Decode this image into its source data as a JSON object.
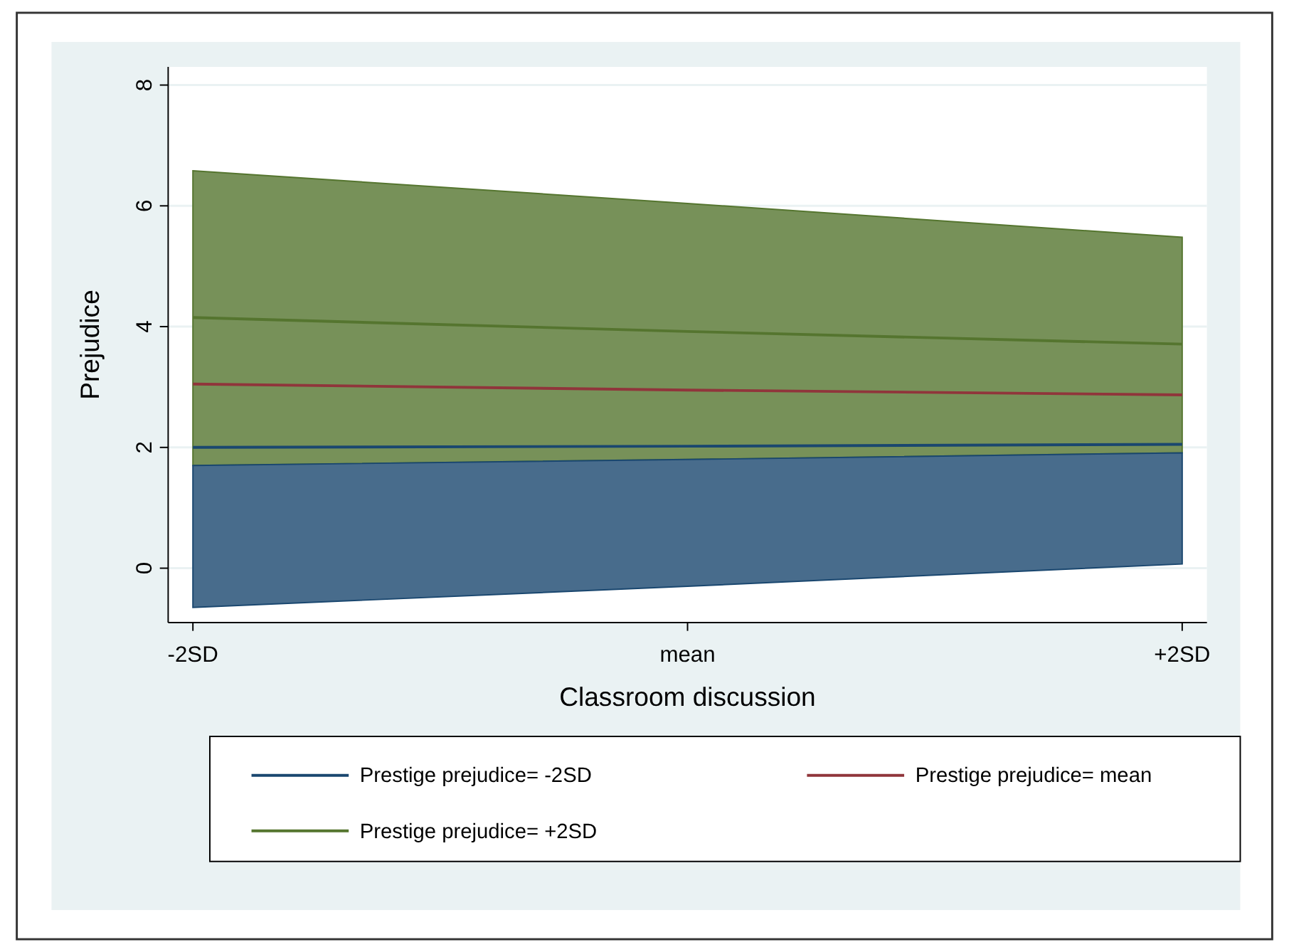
{
  "chart_data": {
    "type": "line",
    "xlabel": "Classroom discussion",
    "ylabel": "Prejudice",
    "categories": [
      "-2SD",
      "mean",
      "+2SD"
    ],
    "series": [
      {
        "name": "Prestige prejudice= -2SD",
        "color": "#1a476f",
        "values": [
          2.0,
          2.02,
          2.05
        ],
        "lower": [
          -0.65,
          -0.3,
          0.07
        ],
        "upper": [
          1.7,
          1.8,
          1.91
        ]
      },
      {
        "name": "Prestige prejudice= mean",
        "color": "#90353b",
        "values": [
          3.05,
          2.95,
          2.87
        ]
      },
      {
        "name": "Prestige prejudice= +2SD",
        "color": "#55752f",
        "values": [
          4.15,
          3.92,
          3.71
        ],
        "lower": [
          1.7,
          1.8,
          1.91
        ],
        "upper": [
          6.58,
          6.04,
          5.48
        ]
      }
    ],
    "ylim": [
      -0.9,
      8.3
    ],
    "yticks": [
      0,
      2,
      4,
      6,
      8
    ],
    "grid": "y",
    "legend": "bottom",
    "marker": "none",
    "line_style": "solid"
  }
}
